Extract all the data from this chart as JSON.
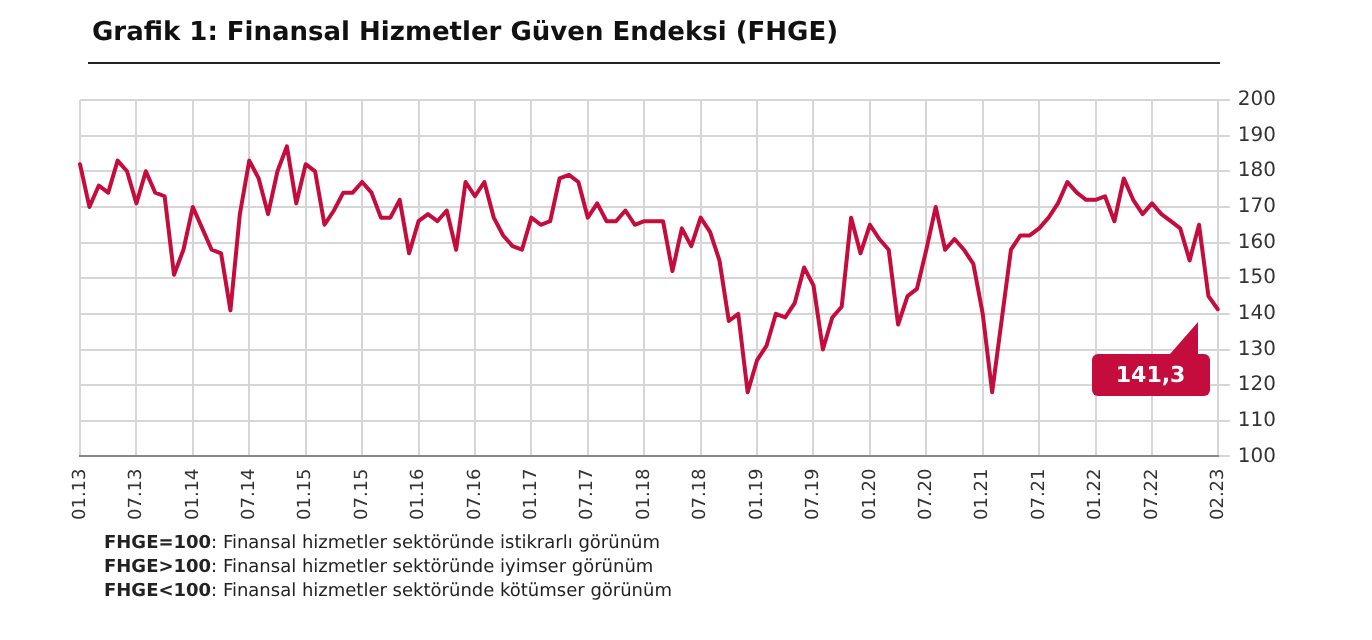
{
  "chart_data": {
    "type": "line",
    "title": "Grafik 1: Finansal Hizmetler Güven Endeksi (FHGE)",
    "categories": [
      "01.13",
      null,
      null,
      null,
      null,
      null,
      "07.13",
      null,
      null,
      null,
      null,
      null,
      "01.14",
      null,
      null,
      null,
      null,
      null,
      "07.14",
      null,
      null,
      null,
      null,
      null,
      "01.15",
      null,
      null,
      null,
      null,
      null,
      "07.15",
      null,
      null,
      null,
      null,
      null,
      "01.16",
      null,
      null,
      null,
      null,
      null,
      "07.16",
      null,
      null,
      null,
      null,
      null,
      "01.17",
      null,
      null,
      null,
      null,
      null,
      "07.17",
      null,
      null,
      null,
      null,
      null,
      "01.18",
      null,
      null,
      null,
      null,
      null,
      "07.18",
      null,
      null,
      null,
      null,
      null,
      "01.19",
      null,
      null,
      null,
      null,
      null,
      "07.19",
      null,
      null,
      null,
      null,
      null,
      "01.20",
      null,
      null,
      null,
      null,
      null,
      "07.20",
      null,
      null,
      null,
      null,
      null,
      "01.21",
      null,
      null,
      null,
      null,
      null,
      "07.21",
      null,
      null,
      null,
      null,
      null,
      "01.22",
      null,
      null,
      null,
      null,
      null,
      "07.22",
      null,
      null,
      null,
      null,
      null,
      null,
      "02.23"
    ],
    "series": [
      {
        "color": "#c40d3c",
        "values": [
          182,
          170,
          176,
          174,
          183,
          180,
          171,
          180,
          174,
          173,
          151,
          158,
          170,
          164,
          158,
          157,
          141,
          168,
          183,
          178,
          168,
          180,
          187,
          171,
          182,
          180,
          165,
          169,
          174,
          174,
          177,
          174,
          167,
          167,
          172,
          157,
          166,
          168,
          166,
          169,
          158,
          177,
          173,
          177,
          167,
          162,
          159,
          158,
          167,
          165,
          166,
          178,
          179,
          177,
          167,
          171,
          166,
          166,
          169,
          165,
          166,
          166,
          166,
          152,
          164,
          159,
          167,
          163,
          155,
          138,
          140,
          118,
          127,
          131,
          140,
          139,
          143,
          153,
          148,
          130,
          139,
          142,
          167,
          157,
          165,
          161,
          158,
          137,
          145,
          147,
          158,
          170,
          158,
          161,
          158,
          154,
          140,
          118,
          138,
          158,
          162,
          162,
          164,
          167,
          171,
          177,
          174,
          172,
          172,
          173,
          166,
          178,
          172,
          168,
          171,
          168,
          166,
          164,
          155,
          165,
          145,
          141.3
        ],
        "value_labels": [
          null,
          null,
          null,
          null,
          null,
          null,
          null,
          null,
          null,
          null,
          null,
          null,
          null,
          null,
          null,
          null,
          null,
          null,
          null,
          null,
          null,
          null,
          null,
          null,
          null,
          null,
          null,
          null,
          null,
          null,
          null,
          null,
          null,
          null,
          null,
          null,
          null,
          null,
          null,
          null,
          null,
          null,
          null,
          null,
          null,
          null,
          null,
          null,
          null,
          null,
          null,
          null,
          null,
          null,
          null,
          null,
          null,
          null,
          null,
          null,
          null,
          null,
          null,
          null,
          null,
          null,
          null,
          null,
          null,
          null,
          null,
          null,
          null,
          null,
          null,
          null,
          null,
          null,
          null,
          null,
          null,
          null,
          null,
          null,
          null,
          null,
          null,
          null,
          null,
          null,
          null,
          null,
          null,
          null,
          null,
          null,
          null,
          null,
          null,
          null,
          null,
          null,
          null,
          null,
          null,
          null,
          null,
          null,
          null,
          null,
          null,
          null,
          null,
          null,
          null,
          null,
          null,
          null,
          null,
          null,
          null,
          "141,3"
        ]
      }
    ],
    "ylim": [
      100,
      200
    ],
    "yticks": [
      100,
      110,
      120,
      130,
      140,
      150,
      160,
      170,
      180,
      190,
      200
    ],
    "grid": true,
    "legend": false,
    "marker": "none",
    "line_style": "solid",
    "annotations": [
      "FHGE=100: Finansal hizmetler sektöründe istikrarlı görünüm",
      "FHGE>100: Finansal hizmetler sektöründe iyimser görünüm",
      "FHGE<100: Finansal hizmetler sektöründe kötümser görünüm"
    ]
  }
}
